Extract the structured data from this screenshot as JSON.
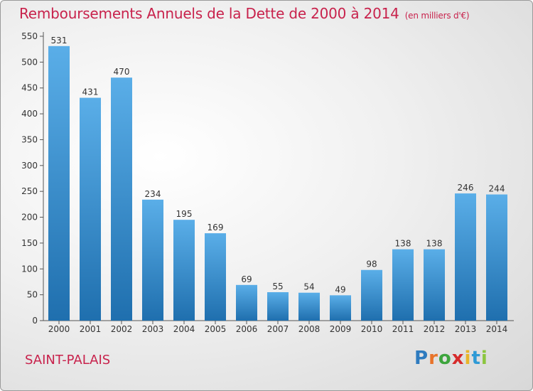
{
  "header": {
    "title": "Remboursements Annuels de la Dette de 2000 à 2014",
    "unit": "(en milliers d'€)"
  },
  "footer": {
    "place": "SAINT-PALAIS",
    "logo_letters": [
      "P",
      "r",
      "o",
      "x",
      "i",
      "t",
      "i"
    ],
    "logo_colors": [
      "#2e7bbf",
      "#e8732a",
      "#3da53d",
      "#d62b2b",
      "#e8b52a",
      "#2e9ad6",
      "#8cc63f"
    ]
  },
  "colors": {
    "title": "#c8224c",
    "bar_top": "#5aaee8",
    "bar_bottom": "#1f6fae",
    "axis": "#555555"
  },
  "chart_data": {
    "type": "bar",
    "title": "Remboursements Annuels de la Dette de 2000 à 2014",
    "categories": [
      "2000",
      "2001",
      "2002",
      "2003",
      "2004",
      "2005",
      "2006",
      "2007",
      "2008",
      "2009",
      "2010",
      "2011",
      "2012",
      "2013",
      "2014"
    ],
    "values": [
      531,
      431,
      470,
      234,
      195,
      169,
      69,
      55,
      54,
      49,
      98,
      138,
      138,
      246,
      244
    ],
    "ylim": [
      0,
      550
    ],
    "yticks": [
      0,
      50,
      100,
      150,
      200,
      250,
      300,
      350,
      400,
      450,
      500,
      550
    ],
    "grid": false,
    "data_labels": true
  }
}
